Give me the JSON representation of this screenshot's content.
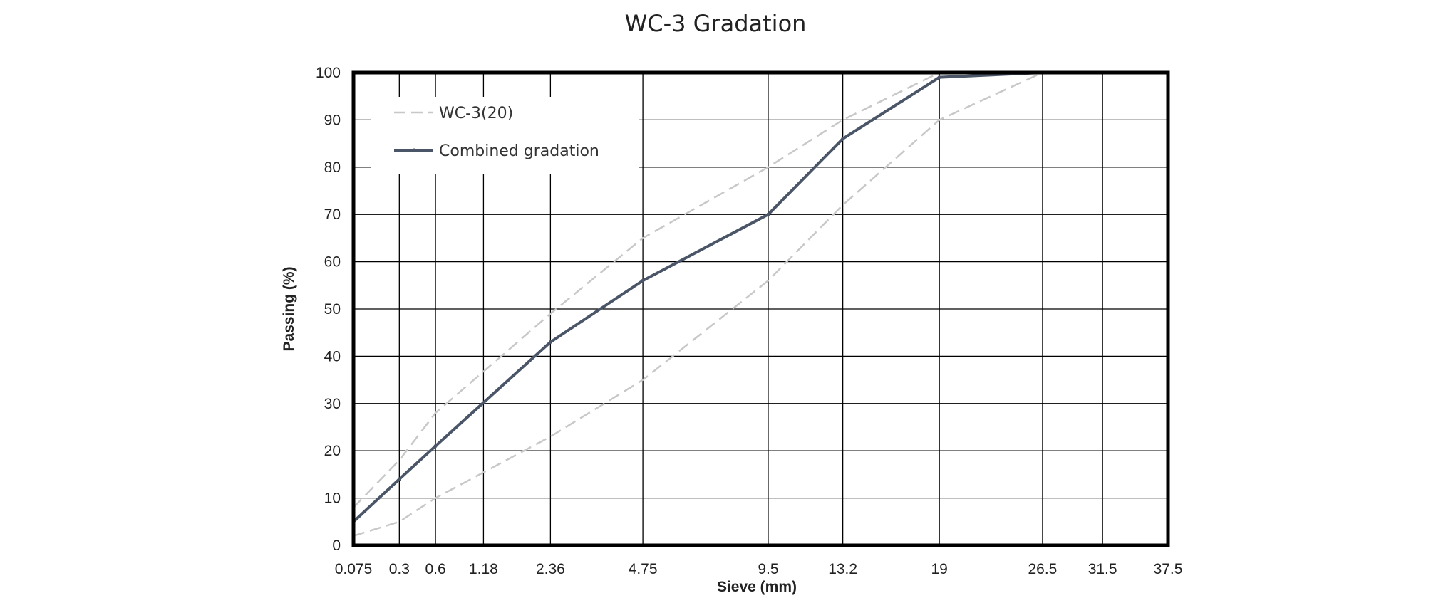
{
  "chart_data": {
    "type": "line",
    "title": "WC-3 Gradation",
    "xlabel": "Sieve (mm)",
    "ylabel": "Passing (%)",
    "x_scale": "power 0.45",
    "x": [
      0.075,
      0.3,
      0.6,
      1.18,
      2.36,
      4.75,
      9.5,
      13.2,
      19,
      26.5,
      31.5,
      37.5
    ],
    "x_ticks": [
      "0.075",
      "0.3",
      "0.6",
      "1.18",
      "2.36",
      "4.75",
      "9.5",
      "13.2",
      "19",
      "26.5",
      "31.5",
      "37.5"
    ],
    "y_ticks": [
      "0",
      "10",
      "20",
      "30",
      "40",
      "50",
      "60",
      "70",
      "80",
      "90",
      "100"
    ],
    "ylim": [
      0,
      100
    ],
    "xlim": [
      0.075,
      37.5
    ],
    "grid": true,
    "legend_position": "top-left",
    "series": [
      {
        "name": "WC-3(20)",
        "style": "dashed",
        "color": "#c8c8c8",
        "upper": [
          [
            0.075,
            8
          ],
          [
            0.3,
            18
          ],
          [
            0.6,
            28
          ],
          [
            2.36,
            49
          ],
          [
            4.75,
            65
          ],
          [
            9.5,
            80
          ],
          [
            13.2,
            90
          ],
          [
            19,
            100
          ],
          [
            26.5,
            100
          ],
          [
            37.5,
            100
          ]
        ],
        "lower": [
          [
            0.075,
            2
          ],
          [
            0.3,
            5
          ],
          [
            0.6,
            10
          ],
          [
            2.36,
            23
          ],
          [
            4.75,
            35
          ],
          [
            9.5,
            56
          ],
          [
            13.2,
            72
          ],
          [
            19,
            90
          ],
          [
            26.5,
            100
          ],
          [
            37.5,
            100
          ]
        ]
      },
      {
        "name": "Combined gradation",
        "style": "solid",
        "color": "#4a5568",
        "points": [
          [
            0.075,
            5
          ],
          [
            0.3,
            14
          ],
          [
            0.6,
            21
          ],
          [
            2.36,
            43
          ],
          [
            4.75,
            56
          ],
          [
            9.5,
            70
          ],
          [
            13.2,
            86
          ],
          [
            19,
            99
          ],
          [
            26.5,
            100
          ],
          [
            37.5,
            100
          ]
        ]
      }
    ]
  }
}
